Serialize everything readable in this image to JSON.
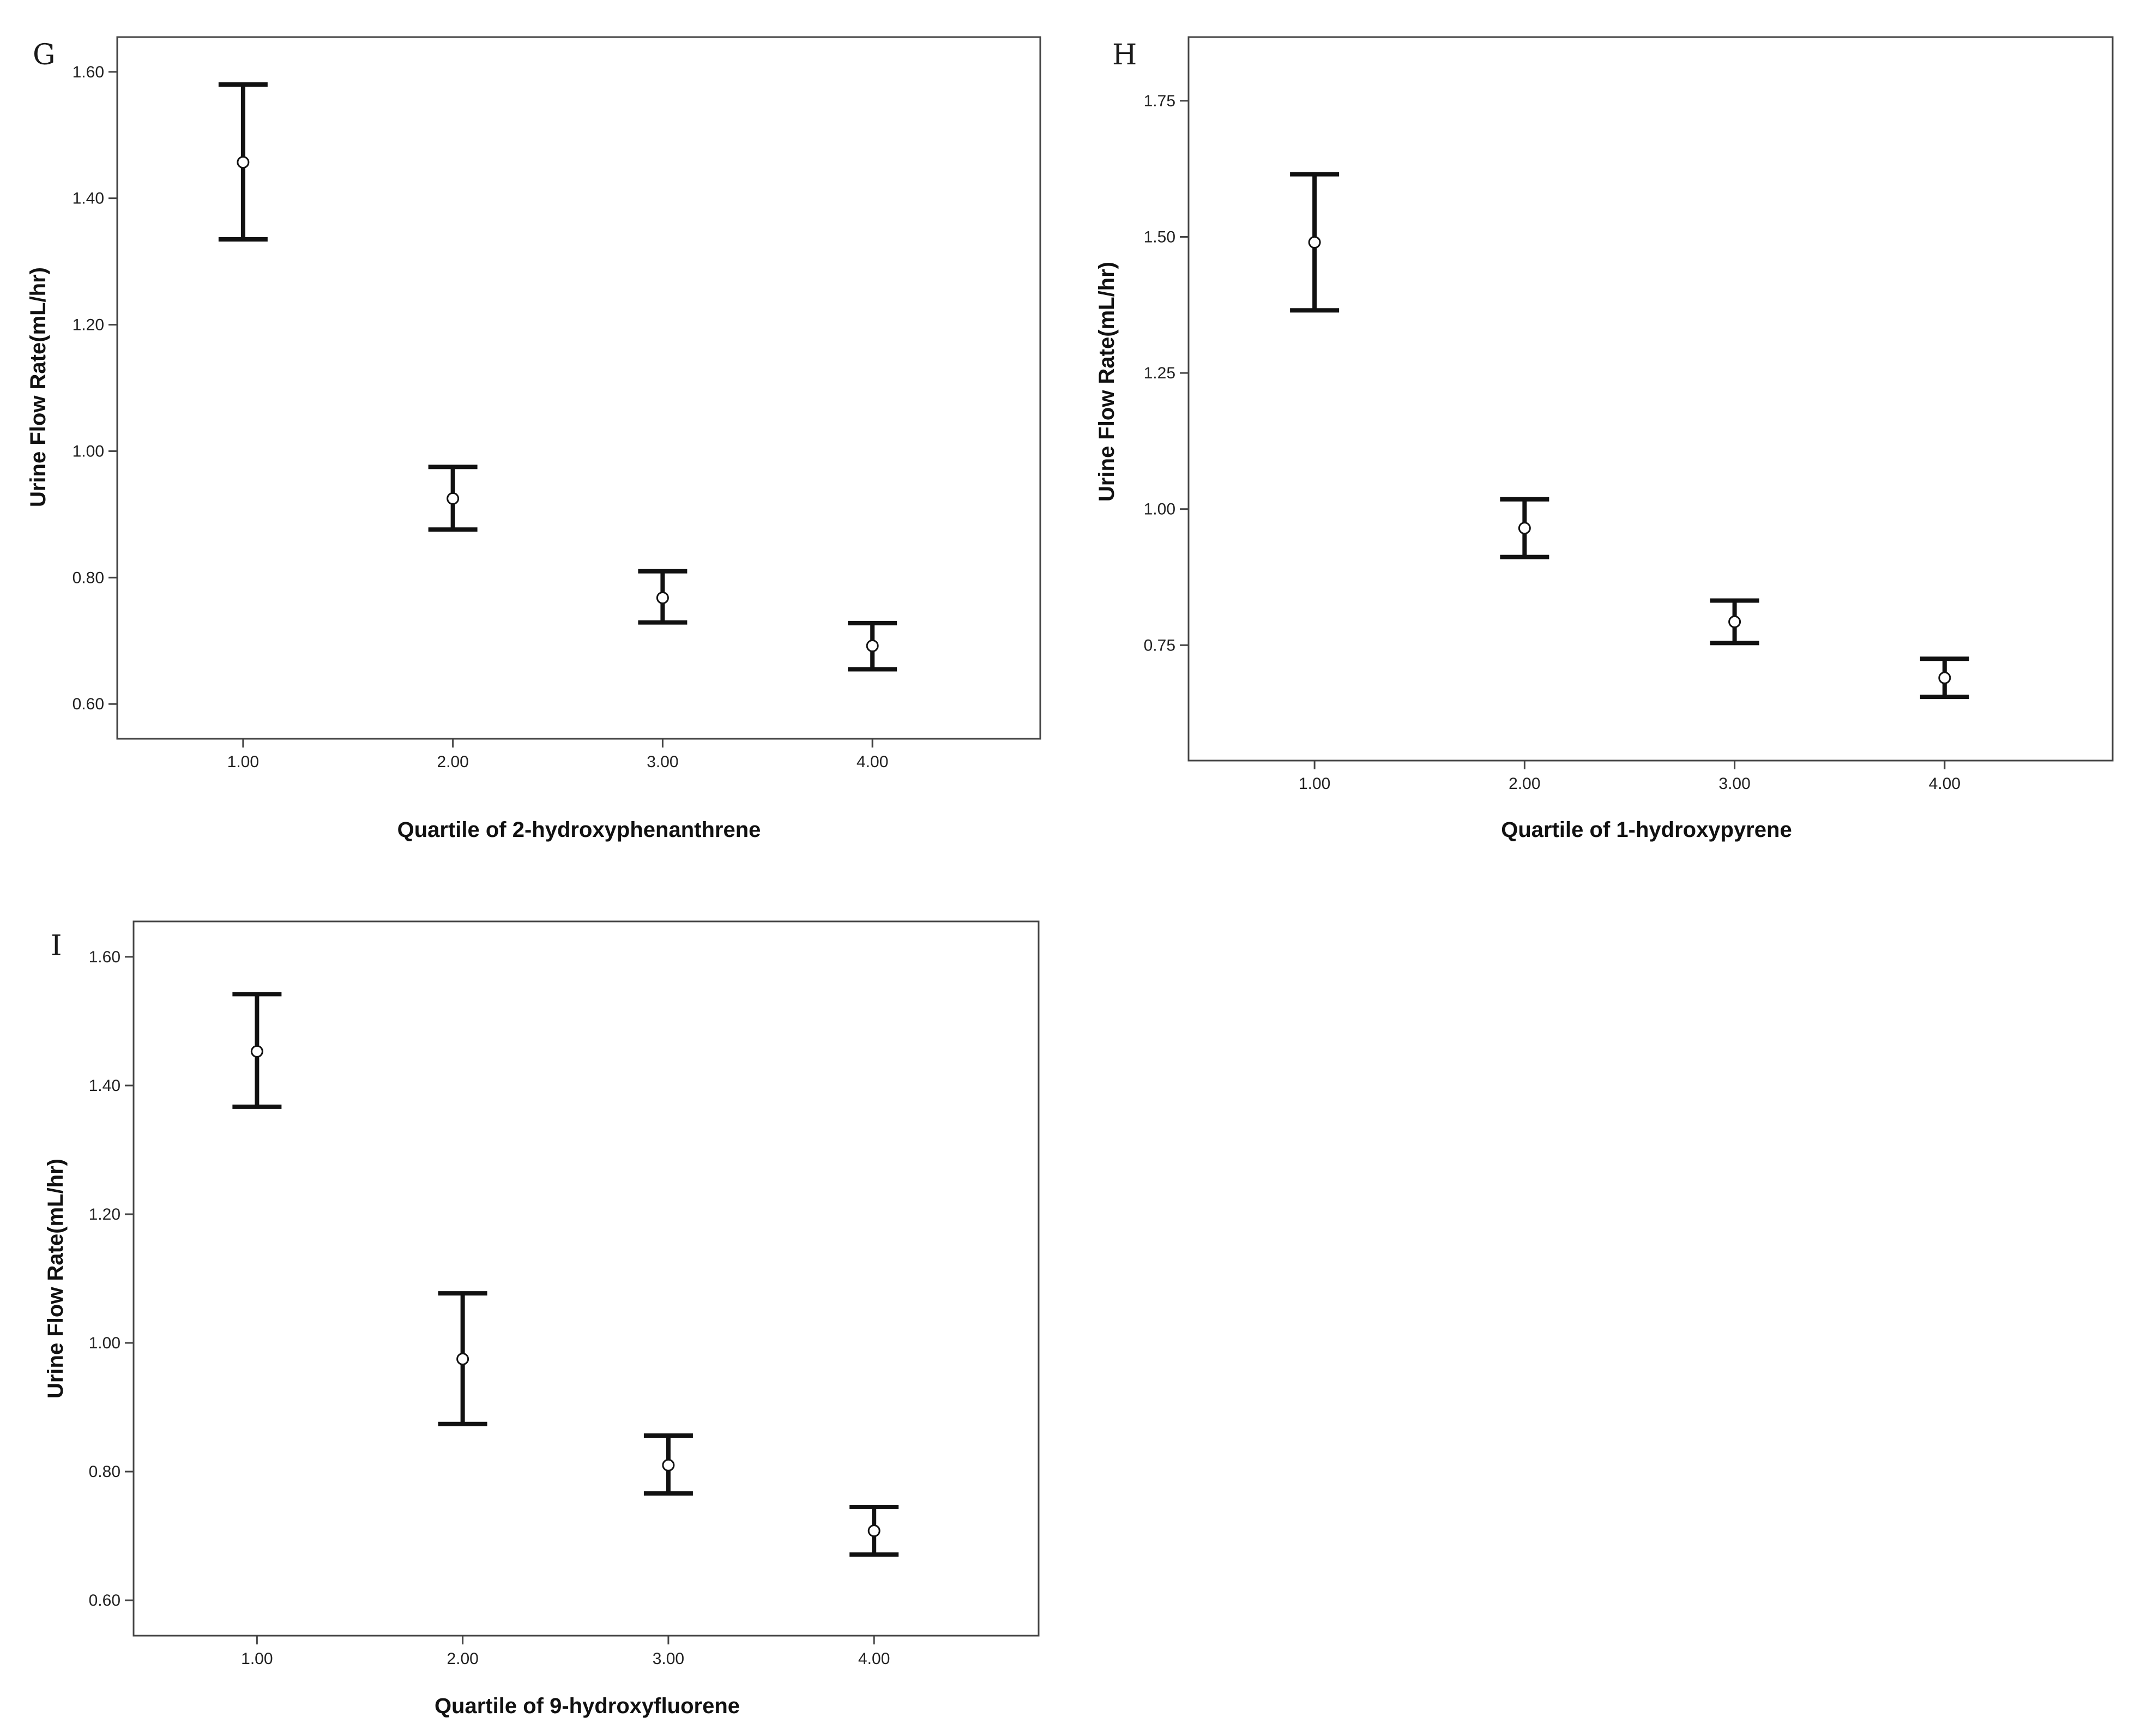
{
  "chart_data": [
    {
      "panel": "G",
      "type": "scatter",
      "xlabel": "Quartile of 2-hydroxyphenanthrene",
      "ylabel": "Urine Flow Rate(mL/hr)",
      "x_ticks": [
        "1.00",
        "2.00",
        "3.00",
        "4.00"
      ],
      "y_ticks": [
        "0.60",
        "0.80",
        "1.00",
        "1.20",
        "1.40",
        "1.60"
      ],
      "xlim": [
        0.4,
        4.8
      ],
      "ylim": [
        0.545,
        1.655
      ],
      "grid": false,
      "points": [
        {
          "x": 1,
          "mean": 1.457,
          "low": 1.335,
          "high": 1.58
        },
        {
          "x": 2,
          "mean": 0.925,
          "low": 0.876,
          "high": 0.975
        },
        {
          "x": 3,
          "mean": 0.768,
          "low": 0.729,
          "high": 0.81
        },
        {
          "x": 4,
          "mean": 0.692,
          "low": 0.655,
          "high": 0.728
        }
      ]
    },
    {
      "panel": "H",
      "type": "scatter",
      "xlabel": "Quartile of 1-hydroxypyrene",
      "ylabel": "Urine Flow Rate(mL/hr)",
      "x_ticks": [
        "1.00",
        "2.00",
        "3.00",
        "4.00"
      ],
      "y_ticks": [
        "0.75",
        "1.00",
        "1.25",
        "1.50",
        "1.75"
      ],
      "xlim": [
        0.4,
        4.8
      ],
      "ylim": [
        0.538,
        1.867
      ],
      "grid": false,
      "points": [
        {
          "x": 1,
          "mean": 1.49,
          "low": 1.365,
          "high": 1.615
        },
        {
          "x": 2,
          "mean": 0.965,
          "low": 0.912,
          "high": 1.018
        },
        {
          "x": 3,
          "mean": 0.793,
          "low": 0.754,
          "high": 0.832
        },
        {
          "x": 4,
          "mean": 0.69,
          "low": 0.655,
          "high": 0.725
        }
      ]
    },
    {
      "panel": "I",
      "type": "scatter",
      "xlabel": "Quartile of 9-hydroxyfluorene",
      "ylabel": "Urine Flow Rate(mL/hr)",
      "x_ticks": [
        "1.00",
        "2.00",
        "3.00",
        "4.00"
      ],
      "y_ticks": [
        "0.60",
        "0.80",
        "1.00",
        "1.20",
        "1.40",
        "1.60"
      ],
      "xlim": [
        0.4,
        4.8
      ],
      "ylim": [
        0.545,
        1.655
      ],
      "grid": false,
      "points": [
        {
          "x": 1,
          "mean": 1.453,
          "low": 1.367,
          "high": 1.542
        },
        {
          "x": 2,
          "mean": 0.975,
          "low": 0.874,
          "high": 1.077
        },
        {
          "x": 3,
          "mean": 0.81,
          "low": 0.766,
          "high": 0.856
        },
        {
          "x": 4,
          "mean": 0.708,
          "low": 0.671,
          "high": 0.745
        }
      ]
    }
  ]
}
